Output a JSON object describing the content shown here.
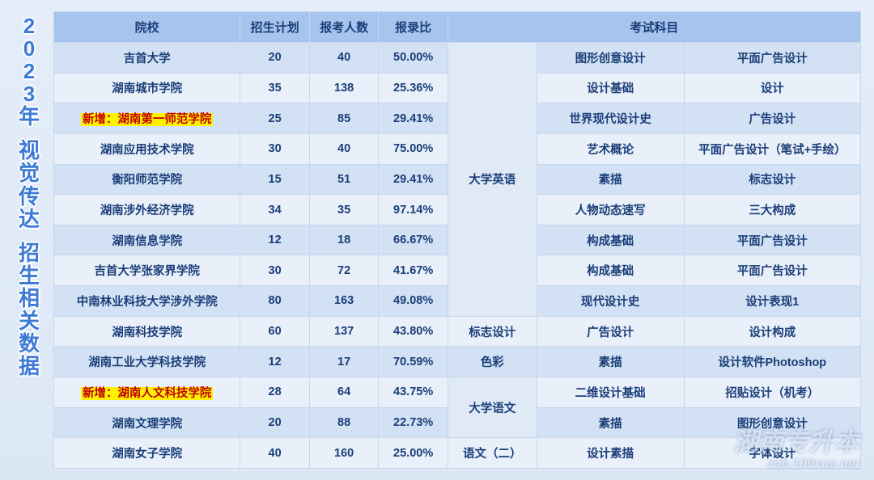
{
  "side_title": [
    "2",
    "0",
    "2",
    "3",
    "年",
    "",
    "视",
    "觉",
    "传",
    "达",
    "",
    "招",
    "生",
    "相",
    "关",
    "数",
    "据"
  ],
  "headers": {
    "school": "院校",
    "plan": "招生计划",
    "applicants": "报考人数",
    "ratio": "报录比",
    "subjects": "考试科目"
  },
  "merge_subject1_group1": "大学英语",
  "merge_subject1_row10": "标志设计",
  "merge_subject1_row11": "色彩",
  "merge_subject1_group2": "大学语文",
  "merge_subject1_row14": "语文（二）",
  "rows": [
    {
      "school": "吉首大学",
      "plan": "20",
      "applicants": "40",
      "ratio": "50.00%",
      "s2": "图形创意设计",
      "s3": "平面广告设计"
    },
    {
      "school": "湖南城市学院",
      "plan": "35",
      "applicants": "138",
      "ratio": "25.36%",
      "s2": "设计基础",
      "s3": "设计"
    },
    {
      "school_prefix": "新增：",
      "school": "湖南第一师范学院",
      "plan": "25",
      "applicants": "85",
      "ratio": "29.41%",
      "s2": "世界现代设计史",
      "s3": "广告设计"
    },
    {
      "school": "湖南应用技术学院",
      "plan": "30",
      "applicants": "40",
      "ratio": "75.00%",
      "s2": "艺术概论",
      "s3": "平面广告设计（笔试+手绘）"
    },
    {
      "school": "衡阳师范学院",
      "plan": "15",
      "applicants": "51",
      "ratio": "29.41%",
      "s2": "素描",
      "s3": "标志设计"
    },
    {
      "school": "湖南涉外经济学院",
      "plan": "34",
      "applicants": "35",
      "ratio": "97.14%",
      "s2": "人物动态速写",
      "s3": "三大构成"
    },
    {
      "school": "湖南信息学院",
      "plan": "12",
      "applicants": "18",
      "ratio": "66.67%",
      "s2": "构成基础",
      "s3": "平面广告设计"
    },
    {
      "school": "吉首大学张家界学院",
      "plan": "30",
      "applicants": "72",
      "ratio": "41.67%",
      "s2": "构成基础",
      "s3": "平面广告设计"
    },
    {
      "school": "中南林业科技大学涉外学院",
      "plan": "80",
      "applicants": "163",
      "ratio": "49.08%",
      "s2": "现代设计史",
      "s3": "设计表现1"
    },
    {
      "school": "湖南科技学院",
      "plan": "60",
      "applicants": "137",
      "ratio": "43.80%",
      "s2": "广告设计",
      "s3": "设计构成"
    },
    {
      "school": "湖南工业大学科技学院",
      "plan": "12",
      "applicants": "17",
      "ratio": "70.59%",
      "s2": "素描",
      "s3": "设计软件Photoshop"
    },
    {
      "school_prefix": "新增：",
      "school": "湖南人文科技学院",
      "plan": "28",
      "applicants": "64",
      "ratio": "43.75%",
      "s2": "二维设计基础",
      "s3": "招贴设计（机考）"
    },
    {
      "school": "湖南文理学院",
      "plan": "20",
      "applicants": "88",
      "ratio": "22.73%",
      "s2": "素描",
      "s3": "图形创意设计"
    },
    {
      "school": "湖南女子学院",
      "plan": "40",
      "applicants": "160",
      "ratio": "25.00%",
      "s2": "设计素描",
      "s3": "字体设计"
    }
  ],
  "watermark": {
    "line1": "湖南专升本",
    "line2": "zsb.100xue.net"
  },
  "colors": {
    "header_bg": "#a6c4ed",
    "row_odd_bg": "#d3e1f4",
    "row_even_bg": "#e9f0fa",
    "text": "#1a3e78",
    "highlight_bg": "#fff200",
    "highlight_text": "#c00000",
    "side_title": "#3d7ad6"
  }
}
